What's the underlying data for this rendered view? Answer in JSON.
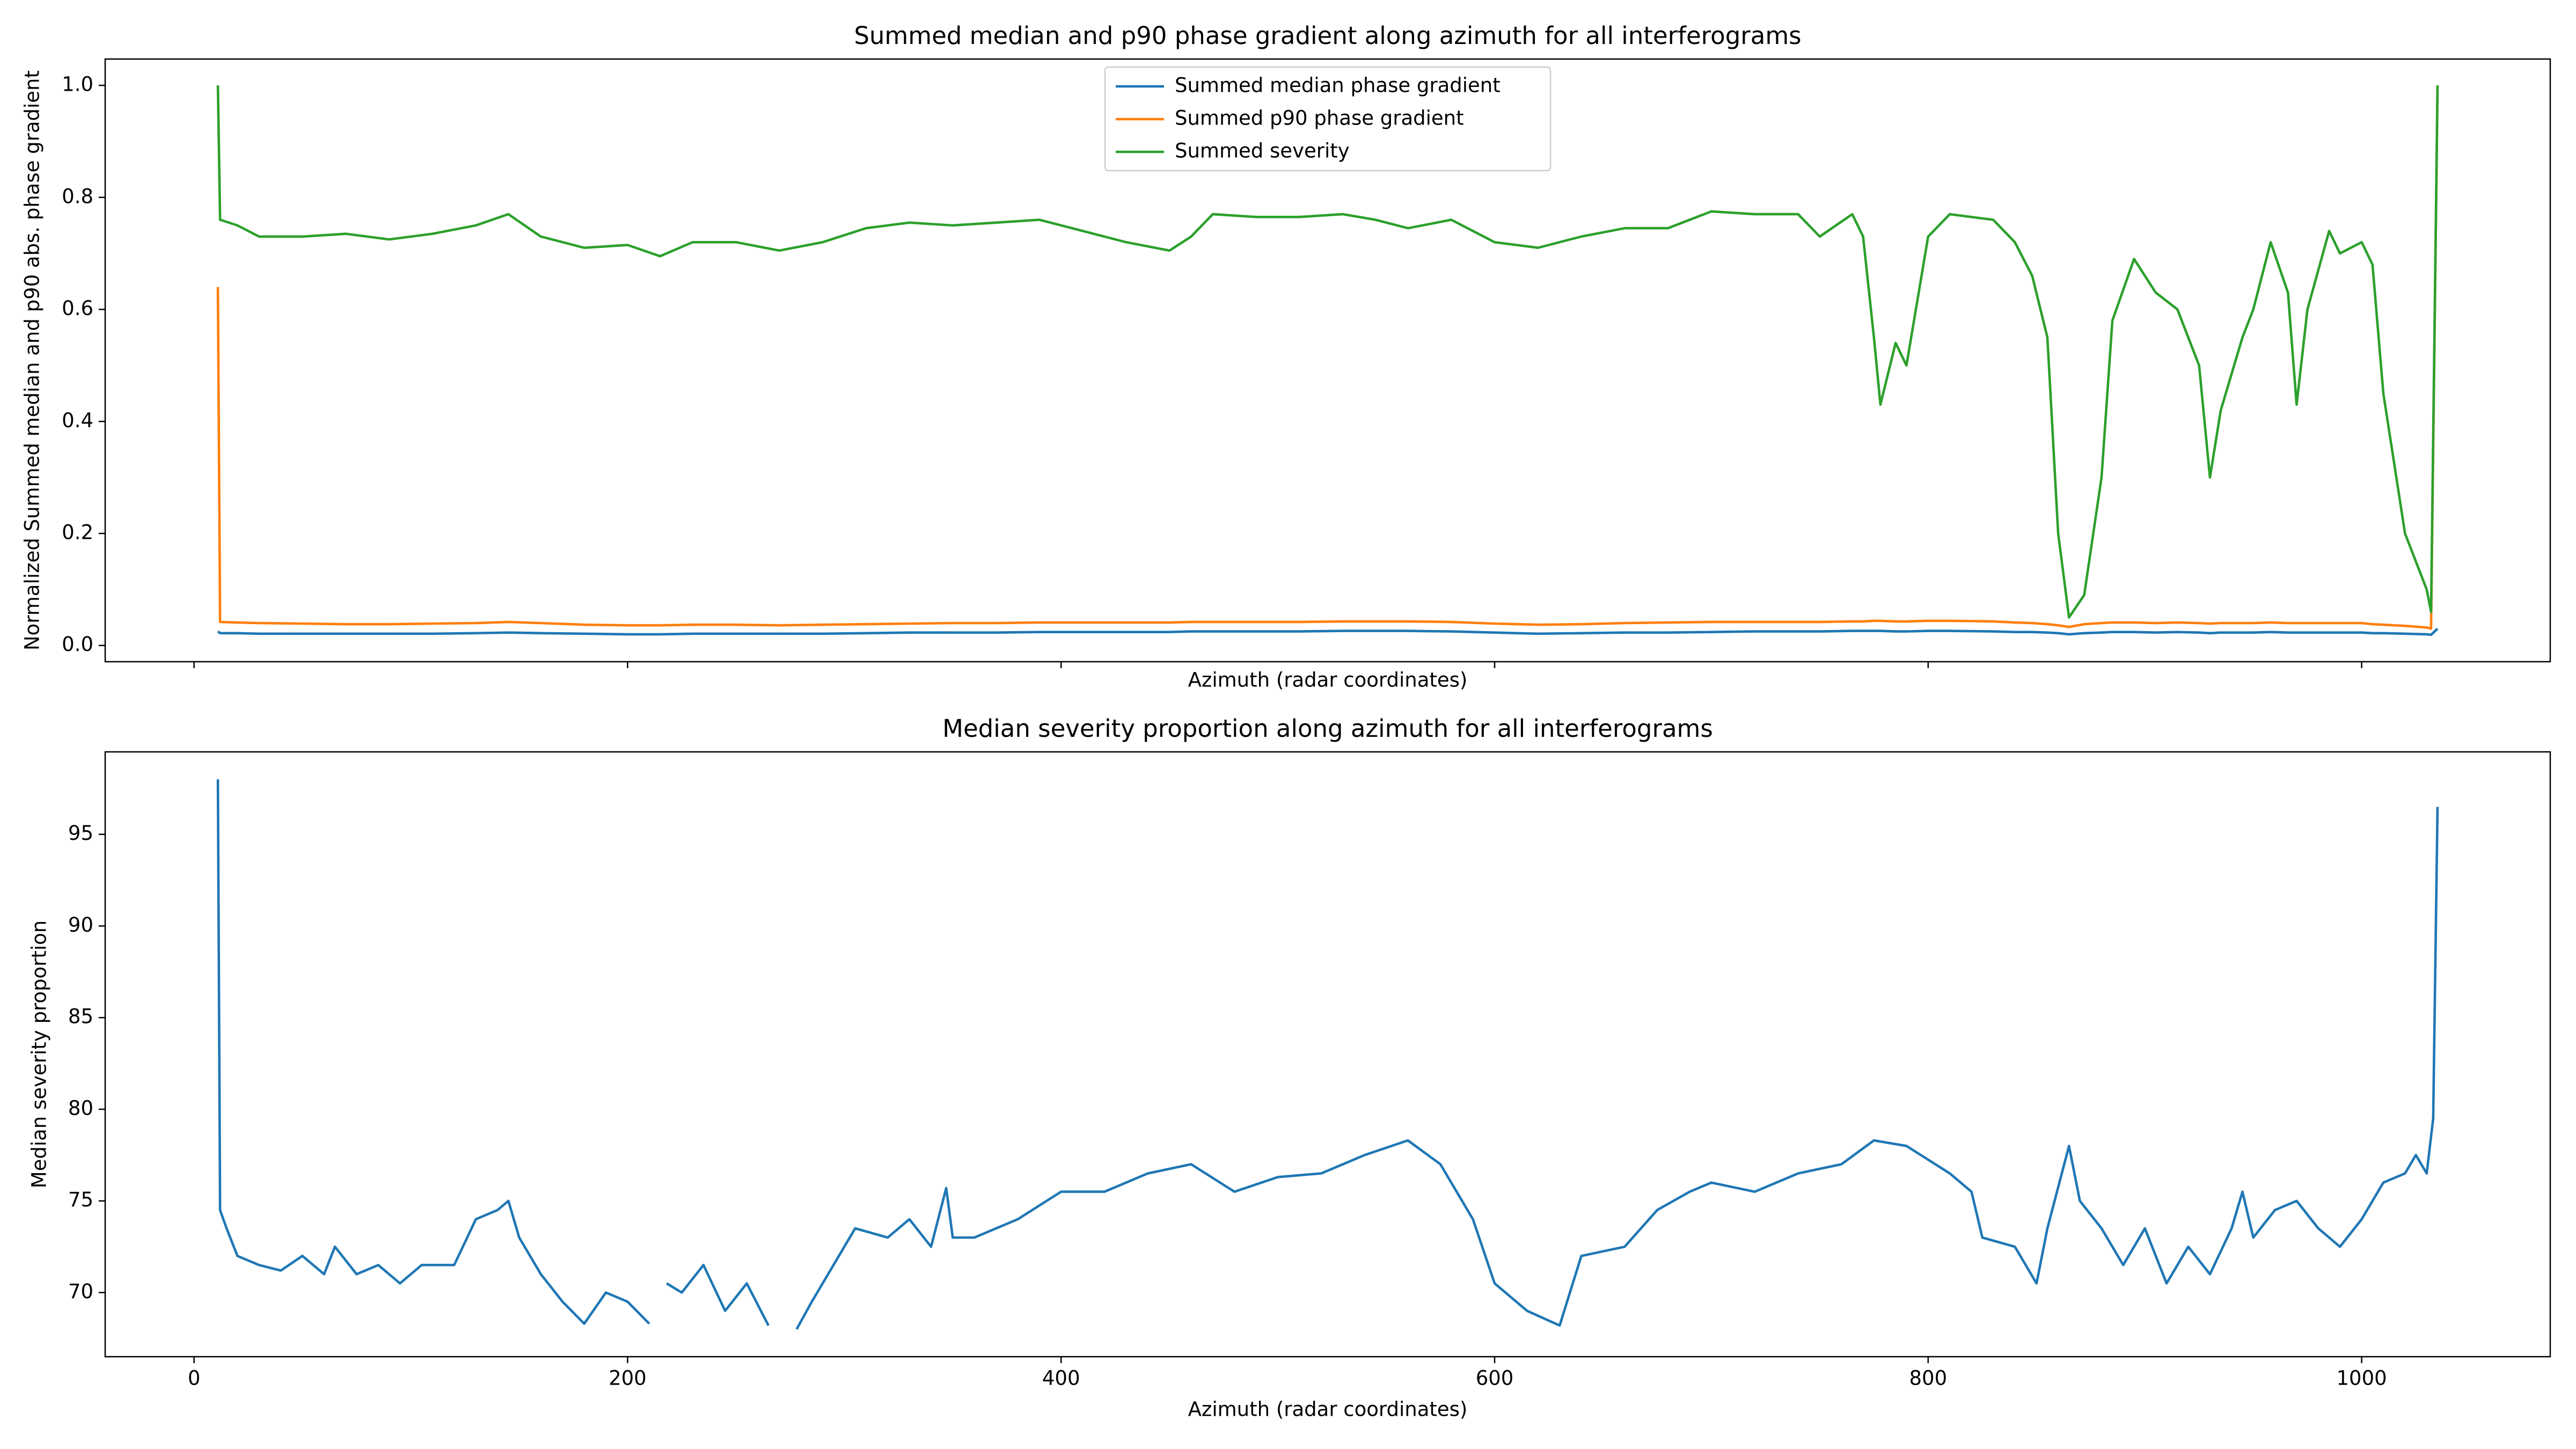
{
  "chart_data": [
    {
      "type": "line",
      "title": "Summed median and p90 phase gradient along azimuth for all interferograms",
      "xlabel": "Azimuth (radar coordinates)",
      "ylabel": "Normalized Summed median and p90 abs. phase gradient",
      "xlim": [
        -41,
        1087
      ],
      "ylim": [
        -0.029,
        1.047
      ],
      "xticks": [
        0,
        200,
        400,
        600,
        800,
        1000
      ],
      "yticks": [
        {
          "value": 0,
          "label": "0.0"
        },
        0.2,
        0.4,
        0.6,
        0.8,
        {
          "value": 1,
          "label": "1.0"
        }
      ],
      "legend": "upper center",
      "grid": false,
      "x": [
        11,
        12,
        20,
        30,
        50,
        70,
        90,
        110,
        130,
        145,
        160,
        180,
        200,
        215,
        230,
        250,
        270,
        290,
        310,
        330,
        350,
        370,
        390,
        410,
        430,
        450,
        460,
        470,
        490,
        510,
        530,
        545,
        560,
        580,
        600,
        620,
        640,
        660,
        680,
        700,
        720,
        740,
        750,
        765,
        770,
        775,
        778,
        785,
        790,
        800,
        810,
        830,
        840,
        848,
        855,
        860,
        865,
        872,
        880,
        885,
        895,
        905,
        915,
        925,
        930,
        935,
        945,
        950,
        958,
        966,
        970,
        975,
        985,
        990,
        1000,
        1005,
        1010,
        1020,
        1030,
        1032,
        1035
      ],
      "series": [
        {
          "name": "Summed median phase gradient",
          "color": "#1f77b4",
          "values": [
            0.025,
            0.022,
            0.022,
            0.021,
            0.021,
            0.021,
            0.021,
            0.021,
            0.022,
            0.023,
            0.022,
            0.021,
            0.02,
            0.02,
            0.021,
            0.021,
            0.021,
            0.021,
            0.022,
            0.023,
            0.023,
            0.023,
            0.024,
            0.024,
            0.024,
            0.024,
            0.025,
            0.025,
            0.025,
            0.025,
            0.026,
            0.026,
            0.026,
            0.025,
            0.023,
            0.021,
            0.022,
            0.023,
            0.023,
            0.024,
            0.025,
            0.025,
            0.025,
            0.026,
            0.026,
            0.026,
            0.026,
            0.025,
            0.025,
            0.026,
            0.026,
            0.025,
            0.024,
            0.024,
            0.023,
            0.022,
            0.02,
            0.022,
            0.023,
            0.024,
            0.024,
            0.023,
            0.024,
            0.023,
            0.022,
            0.023,
            0.023,
            0.023,
            0.024,
            0.023,
            0.023,
            0.023,
            0.023,
            0.023,
            0.023,
            0.022,
            0.022,
            0.021,
            0.02,
            0.019,
            0.03
          ]
        },
        {
          "name": "Summed p90 phase gradient",
          "color": "#ff7f0e",
          "values": [
            0.64,
            0.042,
            0.041,
            0.04,
            0.039,
            0.038,
            0.038,
            0.039,
            0.04,
            0.042,
            0.04,
            0.037,
            0.036,
            0.036,
            0.037,
            0.037,
            0.036,
            0.037,
            0.038,
            0.039,
            0.04,
            0.04,
            0.041,
            0.041,
            0.041,
            0.041,
            0.042,
            0.042,
            0.042,
            0.042,
            0.043,
            0.043,
            0.043,
            0.042,
            0.039,
            0.037,
            0.038,
            0.04,
            0.041,
            0.042,
            0.042,
            0.042,
            0.042,
            0.043,
            0.043,
            0.044,
            0.044,
            0.043,
            0.043,
            0.044,
            0.044,
            0.043,
            0.041,
            0.04,
            0.038,
            0.036,
            0.033,
            0.038,
            0.04,
            0.041,
            0.041,
            0.04,
            0.041,
            0.04,
            0.039,
            0.04,
            0.04,
            0.04,
            0.041,
            0.04,
            0.04,
            0.04,
            0.04,
            0.04,
            0.04,
            0.038,
            0.037,
            0.035,
            0.032,
            0.03,
            1.0
          ]
        },
        {
          "name": "Summed severity",
          "color": "#2ca02c",
          "values": [
            1.0,
            0.76,
            0.75,
            0.73,
            0.73,
            0.735,
            0.725,
            0.735,
            0.75,
            0.77,
            0.73,
            0.71,
            0.715,
            0.695,
            0.72,
            0.72,
            0.705,
            0.72,
            0.745,
            0.755,
            0.75,
            0.755,
            0.76,
            0.74,
            0.72,
            0.705,
            0.73,
            0.77,
            0.765,
            0.765,
            0.77,
            0.76,
            0.745,
            0.76,
            0.72,
            0.71,
            0.73,
            0.745,
            0.745,
            0.775,
            0.77,
            0.77,
            0.73,
            0.77,
            0.73,
            0.55,
            0.43,
            0.54,
            0.5,
            0.73,
            0.77,
            0.76,
            0.72,
            0.66,
            0.55,
            0.2,
            0.05,
            0.09,
            0.3,
            0.58,
            0.69,
            0.63,
            0.6,
            0.5,
            0.3,
            0.42,
            0.55,
            0.6,
            0.72,
            0.63,
            0.43,
            0.6,
            0.74,
            0.7,
            0.72,
            0.68,
            0.45,
            0.2,
            0.1,
            0.06,
            1.0
          ]
        }
      ]
    },
    {
      "type": "line",
      "title": "Median severity proportion along azimuth for all interferograms",
      "xlabel": "Azimuth (radar coordinates)",
      "ylabel": "Median severity proportion",
      "xlim": [
        -41,
        1087
      ],
      "ylim": [
        66.5,
        99.5
      ],
      "xticks": [
        0,
        200,
        400,
        600,
        800,
        1000
      ],
      "yticks": [
        70,
        75,
        80,
        85,
        90,
        95
      ],
      "grid": false,
      "x": [
        11,
        12,
        15,
        20,
        30,
        40,
        50,
        60,
        65,
        75,
        85,
        95,
        105,
        120,
        130,
        140,
        145,
        150,
        160,
        170,
        180,
        190,
        200,
        210,
        213,
        218,
        225,
        235,
        245,
        255,
        265,
        268,
        278,
        285,
        295,
        305,
        320,
        330,
        340,
        347,
        350,
        360,
        380,
        400,
        420,
        440,
        460,
        480,
        500,
        520,
        540,
        560,
        575,
        590,
        600,
        615,
        630,
        640,
        660,
        675,
        690,
        700,
        720,
        740,
        760,
        775,
        790,
        810,
        820,
        825,
        840,
        850,
        855,
        865,
        870,
        880,
        890,
        900,
        910,
        920,
        930,
        940,
        945,
        950,
        960,
        970,
        980,
        990,
        1000,
        1010,
        1020,
        1025,
        1030,
        1033,
        1035
      ],
      "series": [
        {
          "name": "Median severity proportion",
          "color": "#1f77b4",
          "values": [
            98,
            74.5,
            73.5,
            72,
            71.5,
            71.2,
            72,
            71,
            72.5,
            71,
            71.5,
            70.5,
            71.5,
            71.5,
            74,
            74.5,
            75,
            73,
            71,
            69.5,
            68.3,
            70,
            69.5,
            68.3,
            null,
            70.5,
            70,
            71.5,
            69,
            70.5,
            68.2,
            null,
            68,
            69.5,
            71.5,
            73.5,
            73,
            74,
            72.5,
            75.7,
            73,
            73,
            74,
            75.5,
            75.5,
            76.5,
            77,
            75.5,
            76.3,
            76.5,
            77.5,
            78.3,
            77,
            74,
            70.5,
            69,
            68.2,
            72,
            72.5,
            74.5,
            75.5,
            76,
            75.5,
            76.5,
            77,
            78.3,
            78,
            76.5,
            75.5,
            73,
            72.5,
            70.5,
            73.5,
            78,
            75,
            73.5,
            71.5,
            73.5,
            70.5,
            72.5,
            71,
            73.5,
            75.5,
            73,
            74.5,
            75,
            73.5,
            72.5,
            74,
            76,
            76.5,
            77.5,
            76.5,
            79.5,
            96.5
          ]
        }
      ]
    }
  ]
}
